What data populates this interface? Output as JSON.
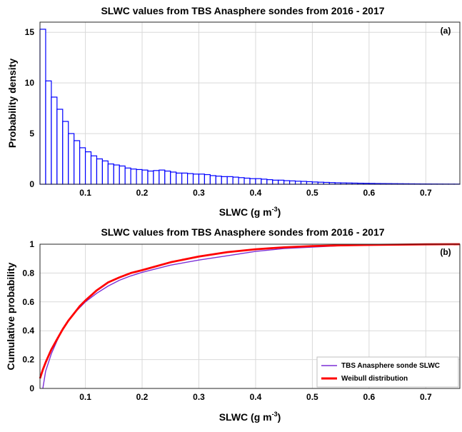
{
  "chart_data": [
    {
      "type": "bar",
      "panel_label": "(a)",
      "title": "SLWC values from TBS Anasphere sondes from 2016 - 2017",
      "xlabel": "SLWC (g m",
      "xlabel_sup": "-3",
      "xlabel_end": ")",
      "ylabel": "Probability density",
      "xlim": [
        0.02,
        0.76
      ],
      "ylim": [
        0,
        16
      ],
      "xticks": [
        "0.1",
        "0.2",
        "0.3",
        "0.4",
        "0.5",
        "0.6",
        "0.7"
      ],
      "yticks": [
        "0",
        "5",
        "10",
        "15"
      ],
      "grid": true,
      "bar_color": "#0000ff",
      "bin_start": 0.02,
      "bin_width": 0.01,
      "values": [
        15.3,
        10.2,
        8.6,
        7.4,
        6.2,
        5.0,
        4.3,
        3.6,
        3.2,
        2.8,
        2.5,
        2.3,
        2.0,
        1.9,
        1.8,
        1.6,
        1.5,
        1.45,
        1.4,
        1.3,
        1.35,
        1.4,
        1.3,
        1.2,
        1.1,
        1.1,
        1.05,
        1.0,
        1.0,
        0.95,
        0.85,
        0.8,
        0.75,
        0.75,
        0.7,
        0.65,
        0.6,
        0.55,
        0.55,
        0.5,
        0.45,
        0.4,
        0.4,
        0.35,
        0.33,
        0.3,
        0.28,
        0.25,
        0.22,
        0.2,
        0.18,
        0.16,
        0.14,
        0.13,
        0.12,
        0.11,
        0.1,
        0.09,
        0.08,
        0.07,
        0.065,
        0.06,
        0.055,
        0.05,
        0.045,
        0.04,
        0.035,
        0.03,
        0.028,
        0.025,
        0.022,
        0.02,
        0.018,
        0.016
      ]
    },
    {
      "type": "line",
      "panel_label": "(b)",
      "title": "SLWC values from TBS Anasphere sondes from 2016 - 2017",
      "xlabel": "SLWC (g m",
      "xlabel_sup": "-3",
      "xlabel_end": ")",
      "ylabel": "Cumulative probability",
      "xlim": [
        0.02,
        0.76
      ],
      "ylim": [
        0,
        1
      ],
      "xticks": [
        "0.1",
        "0.2",
        "0.3",
        "0.4",
        "0.5",
        "0.6",
        "0.7"
      ],
      "yticks": [
        "0",
        "0.2",
        "0.4",
        "0.6",
        "0.8",
        "1"
      ],
      "grid": true,
      "legend_position": "bottom-right",
      "series": [
        {
          "name": "TBS Anasphere sonde SLWC",
          "color": "#7b2fd6",
          "x": [
            0.025,
            0.03,
            0.04,
            0.05,
            0.06,
            0.07,
            0.08,
            0.09,
            0.1,
            0.12,
            0.14,
            0.16,
            0.18,
            0.2,
            0.25,
            0.3,
            0.35,
            0.4,
            0.45,
            0.5,
            0.55,
            0.6,
            0.65,
            0.7,
            0.76
          ],
          "y": [
            0.0,
            0.12,
            0.24,
            0.33,
            0.41,
            0.47,
            0.52,
            0.56,
            0.6,
            0.66,
            0.71,
            0.75,
            0.78,
            0.805,
            0.855,
            0.89,
            0.92,
            0.95,
            0.97,
            0.98,
            0.99,
            0.993,
            0.996,
            0.998,
            1.0
          ]
        },
        {
          "name": "Weibull distribution",
          "color": "#ff0000",
          "x": [
            0.02,
            0.025,
            0.03,
            0.04,
            0.05,
            0.06,
            0.07,
            0.08,
            0.09,
            0.1,
            0.12,
            0.14,
            0.16,
            0.18,
            0.2,
            0.25,
            0.3,
            0.35,
            0.4,
            0.45,
            0.5,
            0.55,
            0.6,
            0.65,
            0.7,
            0.76
          ],
          "y": [
            0.07,
            0.13,
            0.18,
            0.27,
            0.34,
            0.41,
            0.47,
            0.52,
            0.57,
            0.61,
            0.68,
            0.735,
            0.77,
            0.8,
            0.82,
            0.875,
            0.915,
            0.945,
            0.965,
            0.978,
            0.987,
            0.992,
            0.995,
            0.997,
            0.999,
            1.0
          ]
        }
      ]
    }
  ]
}
